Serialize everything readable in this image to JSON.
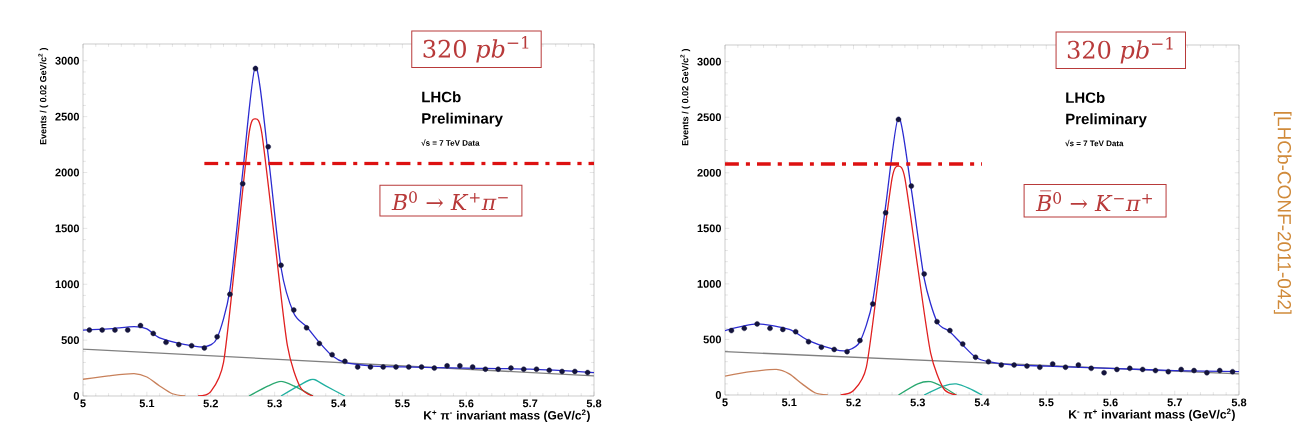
{
  "chart_data": [
    {
      "type": "line",
      "xlabel": "K$^{+}$ π$^{-}$ invariant mass (GeV/c$^{2}$)",
      "ylabel": "Events / ( 0.02 GeV/c$^{2}$ )",
      "xlim": [
        5,
        5.8
      ],
      "ylim": [
        0,
        3150
      ],
      "xticks": [
        5,
        5.1,
        5.2,
        5.3,
        5.4,
        5.5,
        5.6,
        5.7,
        5.8
      ],
      "yticks": [
        0,
        500,
        1000,
        1500,
        2000,
        2500,
        3000
      ],
      "annotations": [
        "320 *pb*$^{−1}$",
        "*B*$^{0}$ → *K*$^{+}$*π*$^{−}$",
        "LHCb",
        "Preliminary",
        "√s = 7 TeV Data"
      ],
      "series": [
        {
          "color": "#808080",
          "x": [
            5.0,
            5.8
          ],
          "values": [
            420,
            180
          ]
        },
        {
          "color": "#c8805a",
          "x": [
            5.0,
            5.04,
            5.08,
            5.1,
            5.12,
            5.14,
            5.16
          ],
          "values": [
            150,
            180,
            200,
            170,
            90,
            20,
            0
          ]
        },
        {
          "color": "#2aa870",
          "x": [
            5.26,
            5.29,
            5.31,
            5.33,
            5.36
          ],
          "values": [
            0,
            90,
            130,
            90,
            0
          ]
        },
        {
          "color": "#20b0a0",
          "x": [
            5.31,
            5.34,
            5.36,
            5.38,
            5.41
          ],
          "values": [
            0,
            100,
            150,
            90,
            0
          ]
        },
        {
          "color": "#e02020",
          "x": [
            5.18,
            5.2,
            5.22,
            5.24,
            5.26,
            5.27,
            5.28,
            5.3,
            5.32,
            5.34,
            5.36
          ],
          "values": [
            0,
            40,
            300,
            1300,
            2350,
            2480,
            2350,
            1400,
            450,
            80,
            0
          ]
        },
        {
          "color": "#2b2bd0",
          "x": [
            5.0,
            5.04,
            5.08,
            5.1,
            5.12,
            5.16,
            5.19,
            5.21,
            5.23,
            5.25,
            5.27,
            5.29,
            5.31,
            5.33,
            5.35,
            5.37,
            5.39,
            5.41,
            5.45,
            5.5,
            5.6,
            5.7,
            5.8
          ],
          "values": [
            590,
            600,
            620,
            600,
            520,
            460,
            440,
            520,
            950,
            2000,
            2950,
            2150,
            1150,
            740,
            620,
            480,
            360,
            300,
            270,
            260,
            250,
            240,
            210
          ]
        },
        {
          "type": "scatter",
          "marker": "circle",
          "color": "#14143c",
          "x": [
            5.01,
            5.03,
            5.05,
            5.07,
            5.09,
            5.11,
            5.13,
            5.15,
            5.17,
            5.19,
            5.21,
            5.23,
            5.25,
            5.27,
            5.29,
            5.31,
            5.33,
            5.35,
            5.37,
            5.39,
            5.41,
            5.43,
            5.45,
            5.47,
            5.49,
            5.51,
            5.53,
            5.55,
            5.57,
            5.59,
            5.61,
            5.63,
            5.65,
            5.67,
            5.69,
            5.71,
            5.73,
            5.75,
            5.77,
            5.79
          ],
          "values": [
            590,
            590,
            590,
            590,
            630,
            560,
            480,
            460,
            450,
            430,
            530,
            910,
            1900,
            2930,
            2230,
            1170,
            770,
            610,
            470,
            370,
            310,
            260,
            260,
            260,
            260,
            260,
            260,
            250,
            270,
            270,
            260,
            240,
            240,
            250,
            240,
            240,
            230,
            220,
            220,
            210
          ]
        },
        {
          "color": "#dd1111",
          "line_style": "dashed",
          "x": [
            5.19,
            5.8
          ],
          "values": [
            2080,
            2080
          ]
        }
      ]
    },
    {
      "type": "line",
      "xlabel": "K$^{-}$ π$^{+}$ invariant mass (GeV/c$^{2}$)",
      "ylabel": "Events / ( 0.02 GeV/c$^{2}$ )",
      "xlim": [
        5,
        5.8
      ],
      "ylim": [
        0,
        3150
      ],
      "xticks": [
        5,
        5.1,
        5.2,
        5.3,
        5.4,
        5.5,
        5.6,
        5.7,
        5.8
      ],
      "yticks": [
        0,
        500,
        1000,
        1500,
        2000,
        2500,
        3000
      ],
      "annotations": [
        "320 *pb*$^{−1}$",
        "*B̅*$^{0}$ → *K*$^{−}$*π*$^{+}$",
        "LHCb",
        "Preliminary",
        "√s = 7 TeV Data",
        "[LHCb-CONF-2011-042]"
      ],
      "series": [
        {
          "color": "#808080",
          "x": [
            5.0,
            5.8
          ],
          "values": [
            390,
            190
          ]
        },
        {
          "color": "#c8805a",
          "x": [
            5.0,
            5.04,
            5.08,
            5.1,
            5.12,
            5.14,
            5.16
          ],
          "values": [
            170,
            210,
            230,
            190,
            100,
            20,
            0
          ]
        },
        {
          "color": "#2aa870",
          "x": [
            5.27,
            5.3,
            5.32,
            5.34,
            5.36
          ],
          "values": [
            0,
            100,
            120,
            70,
            0
          ]
        },
        {
          "color": "#20b0a0",
          "x": [
            5.31,
            5.34,
            5.36,
            5.38,
            5.4
          ],
          "values": [
            0,
            80,
            100,
            60,
            0
          ]
        },
        {
          "color": "#e02020",
          "x": [
            5.18,
            5.2,
            5.22,
            5.24,
            5.26,
            5.27,
            5.28,
            5.3,
            5.32,
            5.34,
            5.36
          ],
          "values": [
            0,
            40,
            250,
            1100,
            1950,
            2060,
            1950,
            1150,
            380,
            60,
            0
          ]
        },
        {
          "color": "#2b2bd0",
          "x": [
            5.0,
            5.05,
            5.1,
            5.13,
            5.17,
            5.19,
            5.21,
            5.23,
            5.25,
            5.27,
            5.29,
            5.31,
            5.33,
            5.35,
            5.37,
            5.39,
            5.41,
            5.45,
            5.5,
            5.6,
            5.7,
            5.8
          ],
          "values": [
            580,
            640,
            590,
            490,
            410,
            400,
            480,
            850,
            1700,
            2500,
            1850,
            1050,
            660,
            570,
            450,
            340,
            300,
            270,
            260,
            240,
            220,
            210
          ]
        },
        {
          "type": "scatter",
          "marker": "circle",
          "color": "#14143c",
          "x": [
            5.01,
            5.03,
            5.05,
            5.07,
            5.09,
            5.11,
            5.13,
            5.15,
            5.17,
            5.19,
            5.21,
            5.23,
            5.25,
            5.27,
            5.29,
            5.31,
            5.33,
            5.35,
            5.37,
            5.39,
            5.41,
            5.43,
            5.45,
            5.47,
            5.49,
            5.51,
            5.53,
            5.55,
            5.57,
            5.59,
            5.61,
            5.63,
            5.65,
            5.67,
            5.69,
            5.71,
            5.73,
            5.75,
            5.77,
            5.79
          ],
          "values": [
            580,
            600,
            640,
            600,
            590,
            570,
            480,
            430,
            410,
            390,
            490,
            820,
            1640,
            2480,
            1880,
            1090,
            660,
            580,
            460,
            340,
            300,
            270,
            270,
            260,
            250,
            280,
            250,
            270,
            240,
            200,
            230,
            240,
            230,
            220,
            210,
            230,
            220,
            200,
            220,
            210
          ]
        },
        {
          "color": "#dd1111",
          "line_style": "dashed",
          "x": [
            5.0,
            5.4
          ],
          "values": [
            2080,
            2080
          ]
        }
      ]
    }
  ]
}
